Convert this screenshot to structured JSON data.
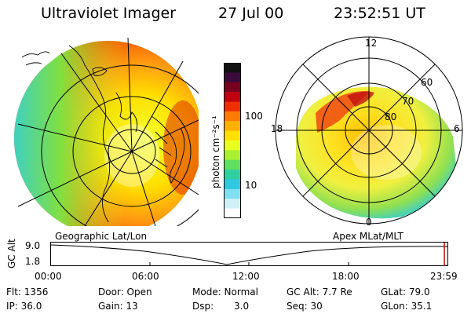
{
  "header": {
    "instrument": "Ultraviolet Imager",
    "date": "27 Jul 00",
    "time": "23:52:51 UT"
  },
  "colorbar": {
    "unit_label": "photon cm⁻²s⁻¹",
    "ticks": [
      "100",
      "10"
    ],
    "ticks_values": [
      100,
      10
    ],
    "colors": [
      "#111111",
      "#3a0a3a",
      "#7a0020",
      "#c00010",
      "#ee3000",
      "#ff7a00",
      "#ffb000",
      "#ffe000",
      "#e8ff20",
      "#a8f030",
      "#60e060",
      "#30d0a0",
      "#30c8e0",
      "#80e0f0",
      "#d0f0f8",
      "#ffffff"
    ]
  },
  "left_panel": {
    "caption": "Geographic Lat/Lon"
  },
  "right_panel": {
    "caption": "Apex MLat/MLT",
    "mlt_labels": {
      "top": "12",
      "left": "18",
      "right": "6",
      "bottom": "0"
    },
    "lat_labels": [
      "60",
      "70",
      "80"
    ]
  },
  "altitude_plot": {
    "ylabel": "GC Alt",
    "yticks": [
      "9.0",
      "1.8"
    ],
    "xticks": [
      "00:00",
      "06:00",
      "12:00",
      "18:00",
      "23:59"
    ]
  },
  "info": {
    "flt": "Flt: 1356",
    "ip": "IP: 36.0",
    "door": "Door: Open",
    "gain": "Gain: 13",
    "mode": "Mode: Normal",
    "dsp_label": "Dsp:",
    "dsp_value": "3.0",
    "gc_alt": "GC Alt: 7.7 Re",
    "seq": "Seq: 30",
    "glat": "GLat: 79.0",
    "glon": "GLon: 35.1"
  }
}
